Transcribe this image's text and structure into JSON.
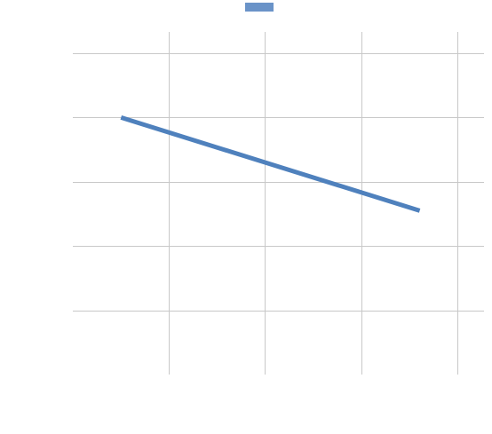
{
  "chart_data": {
    "type": "line",
    "title": "",
    "xlabel": "",
    "ylabel": "",
    "x": [
      0.5,
      3.6
    ],
    "series": [
      {
        "values": [
          4.0,
          2.55
        ],
        "color": "#4f81bd"
      }
    ],
    "xlim": [
      0,
      4
    ],
    "ylim": [
      0,
      5
    ],
    "x_gridlines": [
      1,
      2,
      3,
      4
    ],
    "y_gridlines": [
      1,
      2,
      3,
      4,
      5
    ],
    "grid": true,
    "legend": {
      "position": "top-center",
      "swatch_color": "#6a93c8"
    }
  }
}
